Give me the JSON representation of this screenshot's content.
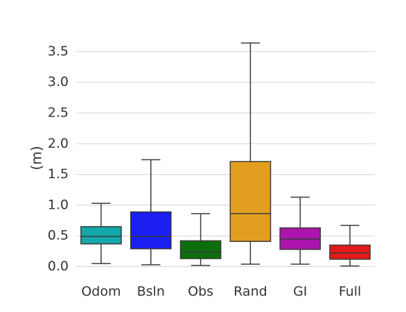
{
  "chart_data": {
    "type": "box",
    "title": "",
    "xlabel": "",
    "ylabel": "(m)",
    "ylim": [
      0,
      3.75
    ],
    "yticks": [
      0.0,
      0.5,
      1.0,
      1.5,
      2.0,
      2.5,
      3.0,
      3.5
    ],
    "ytick_labels": [
      "0.0",
      "0.5",
      "1.0",
      "1.5",
      "2.0",
      "2.5",
      "3.0",
      "3.5"
    ],
    "grid": "horizontal",
    "categories": [
      "Odom",
      "Bsln",
      "Obs",
      "Rand",
      "GI",
      "Full"
    ],
    "boxes": [
      {
        "category": "Odom",
        "color": "#14a8a8",
        "whisker_low": 0.05,
        "q1": 0.37,
        "median": 0.49,
        "q3": 0.65,
        "whisker_high": 1.03
      },
      {
        "category": "Bsln",
        "color": "#1a1ff0",
        "whisker_low": 0.03,
        "q1": 0.29,
        "median": 0.49,
        "q3": 0.89,
        "whisker_high": 1.74
      },
      {
        "category": "Obs",
        "color": "#0d6e0d",
        "whisker_low": 0.02,
        "q1": 0.13,
        "median": 0.24,
        "q3": 0.42,
        "whisker_high": 0.86
      },
      {
        "category": "Rand",
        "color": "#e39e1f",
        "whisker_low": 0.04,
        "q1": 0.41,
        "median": 0.86,
        "q3": 1.71,
        "whisker_high": 3.64
      },
      {
        "category": "GI",
        "color": "#ad14ad",
        "whisker_low": 0.04,
        "q1": 0.28,
        "median": 0.45,
        "q3": 0.63,
        "whisker_high": 1.13
      },
      {
        "category": "Full",
        "color": "#e31a1a",
        "whisker_low": 0.01,
        "q1": 0.12,
        "median": 0.22,
        "q3": 0.35,
        "whisker_high": 0.67
      }
    ]
  }
}
